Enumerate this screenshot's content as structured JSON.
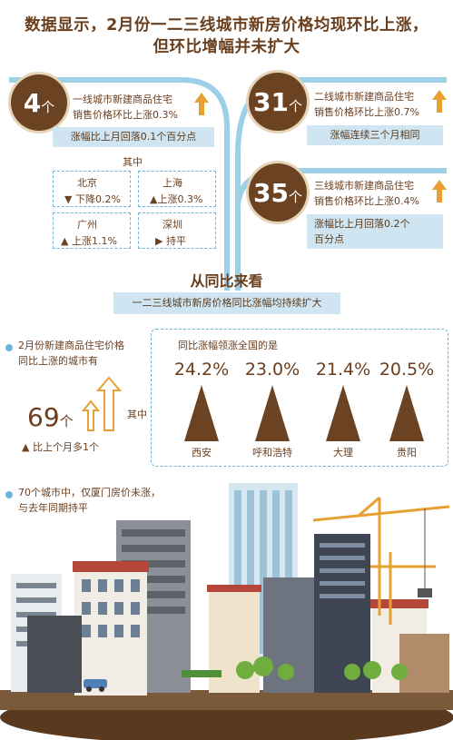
{
  "title": {
    "line1": "数据显示，2月份一二三线城市新房价格均现环比上涨，",
    "line2": "但环比增幅并未扩大"
  },
  "tier1": {
    "count": "4",
    "unit": "个",
    "desc_line1": "一线城市新建商品住宅",
    "desc_line2": "销售价格环比上涨0.3%",
    "note": "涨幅比上月回落0.1个百分点",
    "among_label": "其中",
    "cities": [
      {
        "name": "北京",
        "status": "下降0.2%"
      },
      {
        "name": "上海",
        "status": "上涨0.3%"
      },
      {
        "name": "广州",
        "status": "上涨1.1%"
      },
      {
        "name": "深圳",
        "status": "持平"
      }
    ]
  },
  "tier2": {
    "count": "31",
    "unit": "个",
    "desc_line1": "二线城市新建商品住宅",
    "desc_line2": "销售价格环比上涨0.7%",
    "note": "涨幅连续三个月相同"
  },
  "tier3": {
    "count": "35",
    "unit": "个",
    "desc_line1": "三线城市新建商品住宅",
    "desc_line2": "销售价格环比上涨0.4%",
    "note_line1": "涨幅比上月回落0.2个",
    "note_line2": "百分点"
  },
  "yoy": {
    "heading": "从同比来看",
    "subheading": "一二三线城市新房价格同比涨幅均持续扩大",
    "left_line1": "2月份新建商品住宅价格",
    "left_line2": "同比上涨的城市有",
    "count": "69",
    "unit": "个",
    "among_label": "其中",
    "compare": "比上个月多1个",
    "lead_title": "同比涨幅领涨全国的是",
    "leaders": [
      {
        "pct": "24.2%",
        "city": "西安"
      },
      {
        "pct": "23.0%",
        "city": "呼和浩特"
      },
      {
        "pct": "21.4%",
        "city": "大理"
      },
      {
        "pct": "20.5%",
        "city": "贵阳"
      }
    ]
  },
  "bottom": {
    "line1": "70个城市中，仅厦门房价未涨，",
    "line2": "与去年同期持平"
  },
  "colors": {
    "brown": "#6b4322",
    "accent_orange": "#e8a032",
    "light_blue": "#cfe6f2",
    "dash_blue": "#69b6d8"
  }
}
